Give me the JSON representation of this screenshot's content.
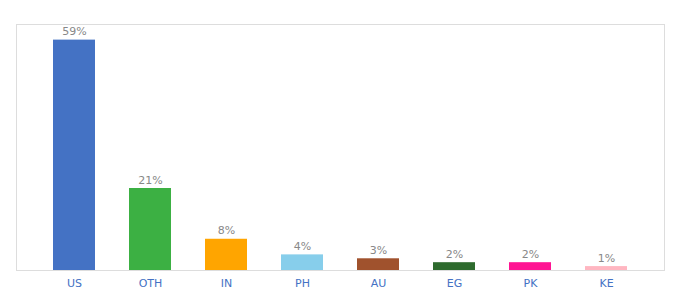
{
  "chart_data": {
    "type": "bar",
    "categories": [
      "US",
      "OTH",
      "IN",
      "PH",
      "AU",
      "EG",
      "PK",
      "KE"
    ],
    "values": [
      59,
      21,
      8,
      4,
      3,
      2,
      2,
      1
    ],
    "value_labels": [
      "59%",
      "21%",
      "8%",
      "4%",
      "3%",
      "2%",
      "2%",
      "1%"
    ],
    "colors": [
      "#4472C4",
      "#3CB043",
      "#FFA500",
      "#87CEEB",
      "#A0522D",
      "#2E6B2E",
      "#FF1493",
      "#FFB6C1"
    ],
    "ylim": [
      0,
      63
    ],
    "data_labels": true,
    "tick_labels": "x",
    "grid": false
  }
}
